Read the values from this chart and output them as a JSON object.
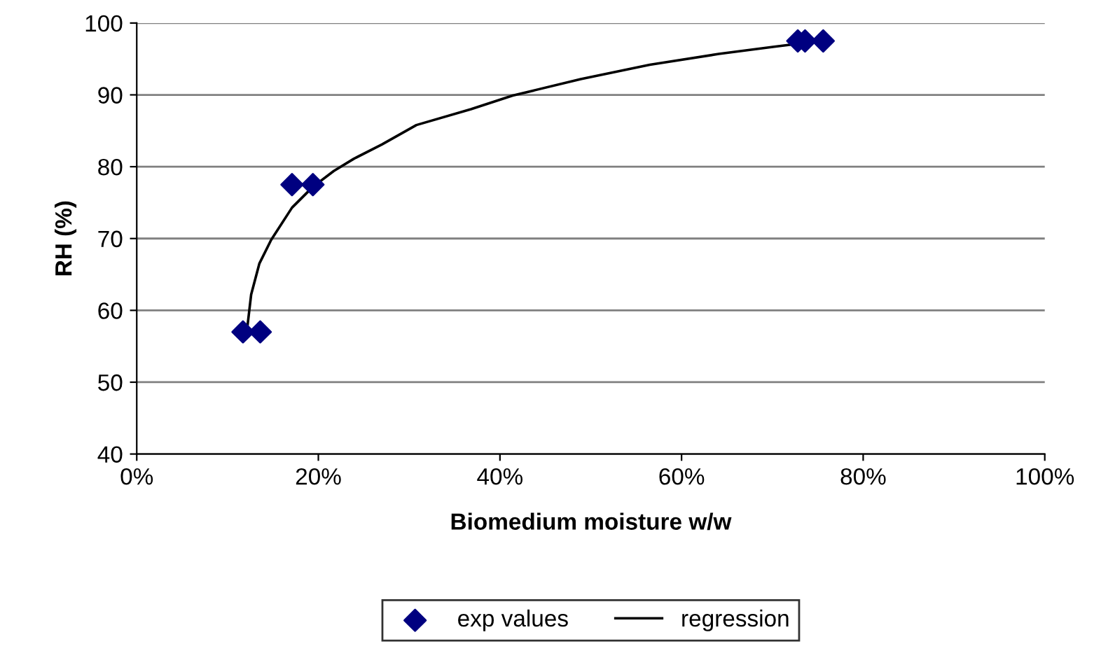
{
  "chart_data": {
    "type": "scatter",
    "xlabel": "Biomedium moisture w/w",
    "ylabel": "RH (%)",
    "xlim": [
      0,
      100
    ],
    "ylim": [
      40,
      100
    ],
    "xticks": [
      {
        "value": 0,
        "label": "0%"
      },
      {
        "value": 20,
        "label": "20%"
      },
      {
        "value": 40,
        "label": "40%"
      },
      {
        "value": 60,
        "label": "60%"
      },
      {
        "value": 80,
        "label": "80%"
      },
      {
        "value": 100,
        "label": "100%"
      }
    ],
    "yticks": [
      40,
      50,
      60,
      70,
      80,
      90,
      100
    ],
    "grid": "y",
    "legend": "bottom",
    "series": [
      {
        "name": "exp values",
        "marker": "diamond",
        "color": "#000080",
        "x": [
          11.7,
          13.6,
          17.1,
          19.4,
          72.8,
          73.6,
          75.6
        ],
        "values": [
          57,
          57,
          77.5,
          77.5,
          97.5,
          97.5,
          97.5
        ]
      },
      {
        "name": "regression",
        "type": "line",
        "line_style": "solid",
        "color": "#000000",
        "x": [
          12.1,
          12.6,
          13.5,
          14.8,
          17.1,
          19.4,
          21.7,
          23.9,
          27,
          30.8,
          36.8,
          41.4,
          48.9,
          56.5,
          64.1,
          70.2,
          72.7
        ],
        "values": [
          56.8,
          62.2,
          66.5,
          69.8,
          74.3,
          77.2,
          79.4,
          81.1,
          83.1,
          85.8,
          88,
          89.9,
          92.2,
          94.2,
          95.7,
          96.7,
          97.1
        ]
      }
    ]
  }
}
